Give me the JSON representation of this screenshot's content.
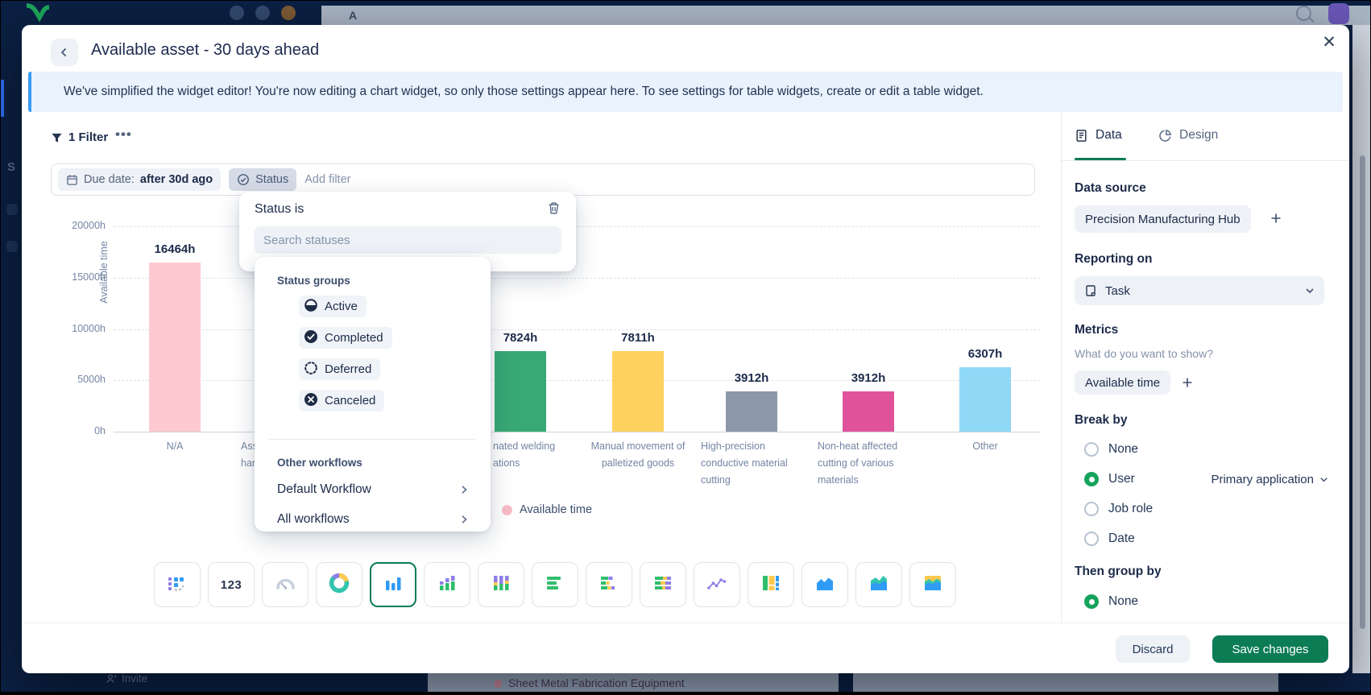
{
  "backdrop": {
    "topbar_text": "A",
    "sidebar_letter": "S",
    "invite_label": "Invite",
    "background_item": "Sheet Metal Fabrication Equipment"
  },
  "modal": {
    "title": "Available asset - 30 days ahead",
    "banner_text": "We've simplified the widget editor! You're now editing a chart widget, so only those settings appear here. To see settings for table widgets, create or edit a table widget."
  },
  "filters": {
    "count_label": "1 Filter",
    "due_date_label": "Due date:",
    "due_date_value": "after 30d ago",
    "status_chip_label": "Status",
    "add_filter_label": "Add filter"
  },
  "status_dropdown": {
    "title": "Status is",
    "search_placeholder": "Search statuses",
    "groups_heading": "Status groups",
    "groups": [
      {
        "label": "Active",
        "icon": "status-active-icon"
      },
      {
        "label": "Completed",
        "icon": "status-completed-icon"
      },
      {
        "label": "Deferred",
        "icon": "status-deferred-icon"
      },
      {
        "label": "Canceled",
        "icon": "status-canceled-icon"
      }
    ],
    "workflows_heading": "Other workflows",
    "workflows": [
      "Default Workflow",
      "All workflows"
    ]
  },
  "chart_data": {
    "type": "bar",
    "title": "",
    "xlabel": "",
    "ylabel": "Available time",
    "ylim": [
      0,
      20000
    ],
    "ytick_labels": [
      "0h",
      "5000h",
      "10000h",
      "15000h",
      "20000h"
    ],
    "grid": "horizontal-dashed",
    "legend": [
      {
        "label": "Available time",
        "color": "#F9BDC6"
      }
    ],
    "bars": [
      {
        "label_lines": [
          "N/A"
        ],
        "value": 16464,
        "value_label": "16464h",
        "color": "#FFC9D0"
      },
      {
        "label_lines": [
          "Ass",
          "han"
        ],
        "value": null,
        "value_label": null,
        "color": null
      },
      {
        "label_lines": [
          "nated welding",
          "ations"
        ],
        "value": 7824,
        "value_label": "7824h",
        "color": "#38A874"
      },
      {
        "label_lines": [
          "Manual movement of",
          "palletized goods"
        ],
        "value": 7811,
        "value_label": "7811h",
        "color": "#FFD25F"
      },
      {
        "label_lines": [
          "High-precision",
          "conductive material",
          "cutting"
        ],
        "value": 3912,
        "value_label": "3912h",
        "color": "#8C98AA"
      },
      {
        "label_lines": [
          "Non-heat affected",
          "cutting of various",
          "materials"
        ],
        "value": 3912,
        "value_label": "3912h",
        "color": "#E0539B"
      },
      {
        "label_lines": [
          "Other"
        ],
        "value": 6307,
        "value_label": "6307h",
        "color": "#8FD9F6"
      }
    ]
  },
  "chart_types": {
    "selected": "column",
    "options": [
      "table",
      "number",
      "gauge",
      "donut",
      "column",
      "column-stacked",
      "column-full",
      "bar",
      "bar-stacked",
      "bar-full",
      "line",
      "mekko",
      "area",
      "area-stacked",
      "area-full"
    ]
  },
  "sidebar": {
    "tabs": [
      {
        "label": "Data",
        "active": true
      },
      {
        "label": "Design",
        "active": false
      }
    ],
    "data_source": {
      "heading": "Data source",
      "value": "Precision Manufacturing Hub"
    },
    "reporting_on": {
      "heading": "Reporting on",
      "value": "Task"
    },
    "metrics": {
      "heading": "Metrics",
      "hint": "What do you want to show?",
      "values": [
        "Available time"
      ]
    },
    "break_by": {
      "heading": "Break by",
      "options": [
        {
          "label": "None",
          "selected": false
        },
        {
          "label": "User",
          "selected": true,
          "detail": "Primary application"
        },
        {
          "label": "Job role",
          "selected": false
        },
        {
          "label": "Date",
          "selected": false
        }
      ]
    },
    "then_group_by": {
      "heading": "Then group by",
      "options": [
        {
          "label": "None",
          "selected": true
        }
      ]
    }
  },
  "footer": {
    "discard_label": "Discard",
    "save_label": "Save changes"
  },
  "colors": {
    "accent_green": "#0C7C55",
    "radio_green": "#15A35C",
    "banner_border": "#3A9BF5",
    "banner_bg": "#E9F2FD",
    "legend_pink": "#F9BDC6"
  }
}
